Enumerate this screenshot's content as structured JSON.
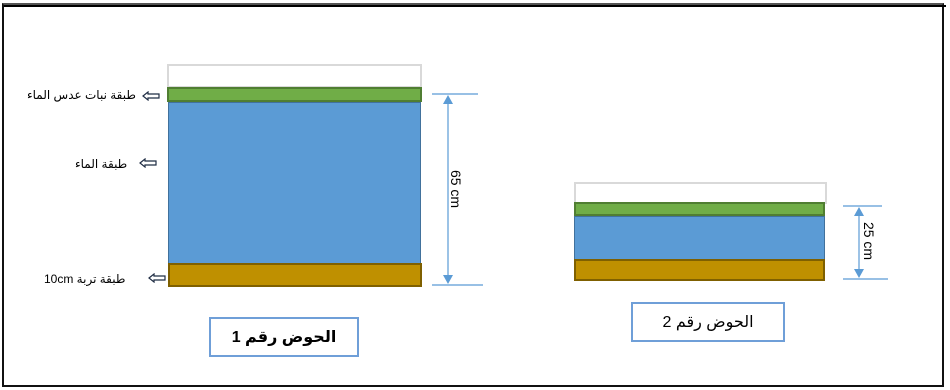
{
  "tank1": {
    "title": "الحوض رقم 1",
    "height_label": "65 cm",
    "labels": {
      "plant_layer": "طبقة  نبات عدس الماء",
      "water_layer": "طبقة الماء",
      "soil_layer": "طبقة تربة 10cm"
    }
  },
  "tank2": {
    "title": "الحوض رقم 2",
    "height_label": "25 cm"
  },
  "colors": {
    "plant": "#70ad47",
    "water": "#5b9bd5",
    "soil": "#bf9000",
    "dimension": "#5b9bd5"
  }
}
